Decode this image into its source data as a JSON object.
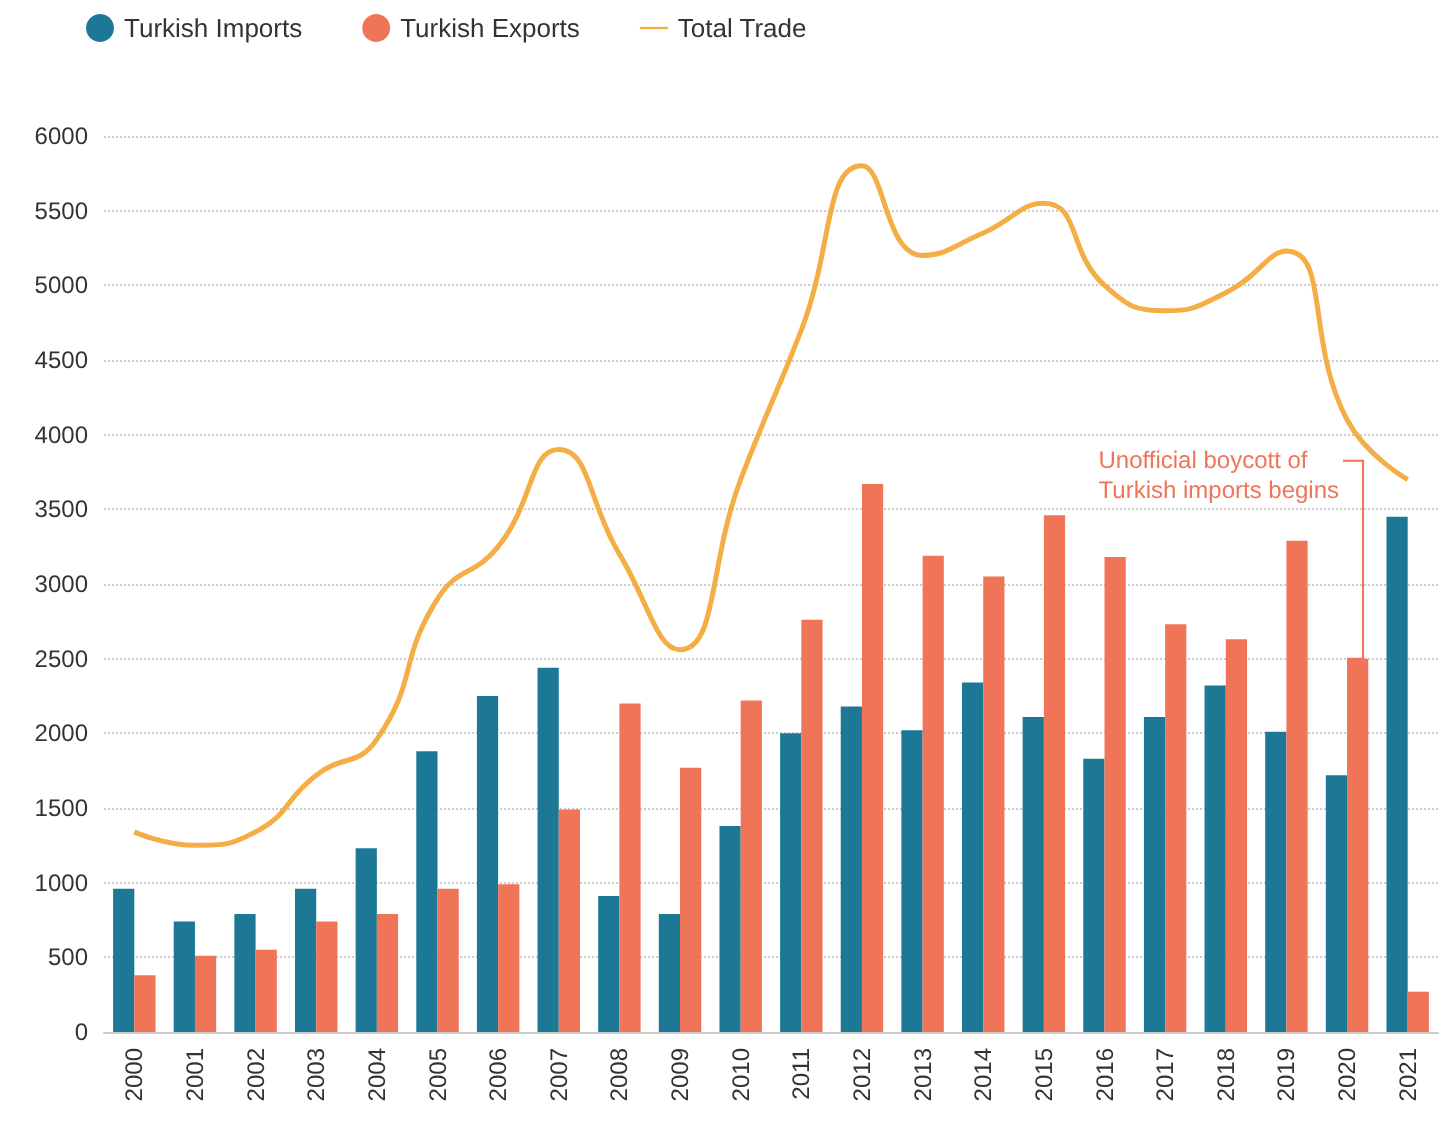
{
  "chart_data": {
    "type": "bar",
    "categories": [
      "2000",
      "2001",
      "2002",
      "2003",
      "2004",
      "2005",
      "2006",
      "2007",
      "2008",
      "2009",
      "2010",
      "2011",
      "2012",
      "2013",
      "2014",
      "2015",
      "2016",
      "2017",
      "2018",
      "2019",
      "2020",
      "2021"
    ],
    "series": [
      {
        "name": "Turkish Imports",
        "color": "#1d7895",
        "values": [
          960,
          740,
          790,
          960,
          1230,
          1880,
          2250,
          2440,
          910,
          790,
          1380,
          2000,
          2180,
          2020,
          2340,
          2110,
          1830,
          2110,
          2320,
          2010,
          1720,
          3450
        ]
      },
      {
        "name": "Turkish Exports",
        "color": "#ef7458",
        "values": [
          380,
          510,
          550,
          740,
          790,
          960,
          990,
          1490,
          2200,
          1770,
          2220,
          2760,
          3670,
          3190,
          3050,
          3460,
          3180,
          2730,
          2630,
          3290,
          2500,
          270
        ]
      },
      {
        "name": "Total Trade",
        "type": "line",
        "color": "#f4ae45",
        "values": [
          1340,
          1250,
          1340,
          1720,
          1960,
          2900,
          3250,
          3900,
          3200,
          2560,
          3700,
          4700,
          5800,
          5200,
          5350,
          5550,
          5000,
          4830,
          4950,
          5230,
          4100,
          3700
        ]
      }
    ],
    "ylim": [
      0,
      6000
    ],
    "yticks": [
      0,
      500,
      1000,
      1500,
      2000,
      2500,
      3000,
      3500,
      4000,
      4500,
      5000,
      5500,
      6000
    ],
    "grid": "y",
    "legend": "top left",
    "marker": "none",
    "annotations": [
      {
        "text": "Unofficial boycott of\nTurkish imports begins",
        "x": "2020",
        "y": 2500
      }
    ]
  }
}
